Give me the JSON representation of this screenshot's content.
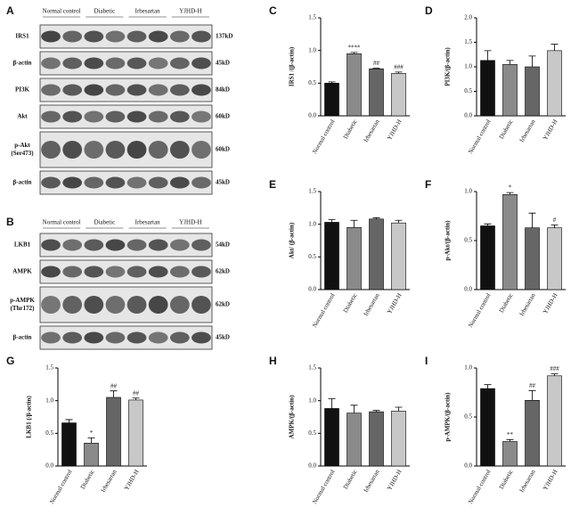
{
  "blots": [
    {
      "panel": "A",
      "groups": [
        "Normal control",
        "Diabetic",
        "Irbesartan",
        "YJHD-H"
      ],
      "rows": [
        {
          "label": [
            "IRS1"
          ],
          "size": "137kD"
        },
        {
          "label": [
            "β-actin"
          ],
          "size": "45kD"
        },
        {
          "label": [
            "PI3K"
          ],
          "size": "84kD"
        },
        {
          "label": [
            "Akt"
          ],
          "size": "60kD"
        },
        {
          "label": [
            "p-Akt",
            "(Ser473)"
          ],
          "size": "60kD"
        },
        {
          "label": [
            "β-actin"
          ],
          "size": "45kD"
        }
      ]
    },
    {
      "panel": "B",
      "groups": [
        "Normal control",
        "Diabetic",
        "Irbesartan",
        "YJHD-H"
      ],
      "rows": [
        {
          "label": [
            "LKB1"
          ],
          "size": "54kD"
        },
        {
          "label": [
            "AMPK"
          ],
          "size": "62kD"
        },
        {
          "label": [
            "p-AMPK",
            "(Thr172)"
          ],
          "size": "62kD"
        },
        {
          "label": [
            "β-actin"
          ],
          "size": "45kD"
        }
      ]
    }
  ],
  "chart_data": [
    {
      "type": "bar",
      "panel": "C",
      "y_label": "IRS1 /(β-actin)",
      "categories": [
        "Normal control",
        "Diabetic",
        "Irbesartan",
        "YJHD-H"
      ],
      "values": [
        0.5,
        0.95,
        0.72,
        0.65
      ],
      "errors": [
        0.02,
        0.02,
        0.01,
        0.02
      ],
      "annotations": [
        null,
        "****",
        "##",
        "###"
      ],
      "colors": [
        "#111111",
        "#8a8a8a",
        "#666666",
        "#c8c8c8"
      ],
      "ylim": [
        0,
        1.5
      ],
      "yticks": [
        {
          "value": 0,
          "label": "0.0"
        },
        {
          "value": 0.5,
          "label": "0.5"
        },
        {
          "value": 1,
          "label": "1.0"
        },
        {
          "value": 1.5,
          "label": "1.5"
        }
      ]
    },
    {
      "type": "bar",
      "panel": "D",
      "y_label": "PI3K/(β-actin)",
      "categories": [
        "Normal control",
        "Diabetic",
        "Irbesartan",
        "YJHD-H"
      ],
      "values": [
        1.13,
        1.05,
        1.0,
        1.33
      ],
      "errors": [
        0.2,
        0.08,
        0.22,
        0.13
      ],
      "annotations": [
        null,
        null,
        null,
        null
      ],
      "colors": [
        "#111111",
        "#8a8a8a",
        "#666666",
        "#c8c8c8"
      ],
      "ylim": [
        0,
        2
      ],
      "yticks": [
        {
          "value": 0,
          "label": "0.0"
        },
        {
          "value": 0.5,
          "label": "0.5"
        },
        {
          "value": 1,
          "label": "1.0"
        },
        {
          "value": 1.5,
          "label": "1.5"
        },
        {
          "value": 2,
          "label": "2.0"
        }
      ]
    },
    {
      "type": "bar",
      "panel": "E",
      "y_label": "Akt/ (β-actin)",
      "categories": [
        "Normal control",
        "Diabetic",
        "Irbesartan",
        "YJHD-H"
      ],
      "values": [
        1.03,
        0.95,
        1.08,
        1.02
      ],
      "errors": [
        0.04,
        0.11,
        0.02,
        0.04
      ],
      "annotations": [
        null,
        null,
        null,
        null
      ],
      "colors": [
        "#111111",
        "#8a8a8a",
        "#666666",
        "#c8c8c8"
      ],
      "ylim": [
        0,
        1.5
      ],
      "yticks": [
        {
          "value": 0,
          "label": "0.0"
        },
        {
          "value": 0.5,
          "label": "0.5"
        },
        {
          "value": 1,
          "label": "1.0"
        },
        {
          "value": 1.5,
          "label": "1.5"
        }
      ]
    },
    {
      "type": "bar",
      "panel": "F",
      "y_label": "p-Akt/(β-actin)",
      "categories": [
        "Normal control",
        "Diabetic",
        "Irbesartan",
        "YJHD-H"
      ],
      "values": [
        0.65,
        0.97,
        0.63,
        0.63
      ],
      "errors": [
        0.02,
        0.02,
        0.15,
        0.03
      ],
      "annotations": [
        null,
        "*",
        null,
        "#"
      ],
      "colors": [
        "#111111",
        "#8a8a8a",
        "#666666",
        "#c8c8c8"
      ],
      "ylim": [
        0,
        1
      ],
      "yticks": [
        {
          "value": 0,
          "label": "0.0"
        },
        {
          "value": 0.5,
          "label": "0.5"
        },
        {
          "value": 1,
          "label": "1.0"
        }
      ]
    },
    {
      "type": "bar",
      "panel": "G",
      "y_label": "LKB1 (/β-actin)",
      "categories": [
        "Normal control",
        "Diabetic",
        "Irbesartan",
        "YJHD-H"
      ],
      "values": [
        0.66,
        0.35,
        1.05,
        1.01
      ],
      "errors": [
        0.05,
        0.08,
        0.1,
        0.03
      ],
      "annotations": [
        null,
        "*",
        "##",
        "##"
      ],
      "colors": [
        "#111111",
        "#8a8a8a",
        "#666666",
        "#c8c8c8"
      ],
      "ylim": [
        0,
        1.5
      ],
      "yticks": [
        {
          "value": 0,
          "label": "0.0"
        },
        {
          "value": 0.5,
          "label": "0.5"
        },
        {
          "value": 1,
          "label": "1.0"
        },
        {
          "value": 1.5,
          "label": "1.5"
        }
      ]
    },
    {
      "type": "bar",
      "panel": "H",
      "y_label": "AMPK/(β-actin)",
      "categories": [
        "Normal control",
        "Diabetic",
        "Irbesartan",
        "YJHD-H"
      ],
      "values": [
        0.88,
        0.81,
        0.83,
        0.84
      ],
      "errors": [
        0.15,
        0.12,
        0.02,
        0.06
      ],
      "annotations": [
        null,
        null,
        null,
        null
      ],
      "colors": [
        "#111111",
        "#8a8a8a",
        "#666666",
        "#c8c8c8"
      ],
      "ylim": [
        0,
        1.5
      ],
      "yticks": [
        {
          "value": 0,
          "label": "0.0"
        },
        {
          "value": 0.5,
          "label": "0.5"
        },
        {
          "value": 1,
          "label": "1.0"
        },
        {
          "value": 1.5,
          "label": "1.5"
        }
      ]
    },
    {
      "type": "bar",
      "panel": "I",
      "y_label": "p-AMPK/(β-actin)",
      "categories": [
        "Normal control",
        "Diabetic",
        "Irbesartan",
        "YJHD-H"
      ],
      "values": [
        0.79,
        0.25,
        0.67,
        0.92
      ],
      "errors": [
        0.04,
        0.02,
        0.1,
        0.02
      ],
      "annotations": [
        null,
        "**",
        "##",
        "###"
      ],
      "colors": [
        "#111111",
        "#8a8a8a",
        "#666666",
        "#c8c8c8"
      ],
      "ylim": [
        0,
        1
      ],
      "yticks": [
        {
          "value": 0,
          "label": "0.0"
        },
        {
          "value": 0.5,
          "label": "0.5"
        },
        {
          "value": 1,
          "label": "1.0"
        }
      ]
    }
  ]
}
